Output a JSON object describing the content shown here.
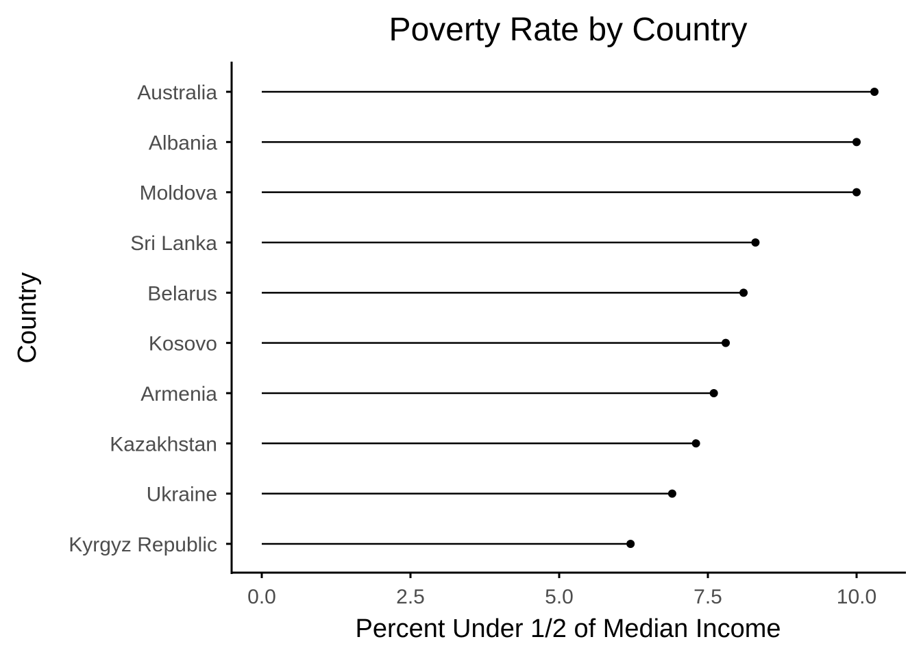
{
  "chart_data": {
    "type": "lollipop",
    "title": "Poverty Rate by Country",
    "xlabel": "Percent Under 1/2 of Median Income",
    "ylabel": "Country",
    "xlim": [
      -0.5,
      10.8
    ],
    "x_ticks": [
      {
        "value": 0,
        "label": "0.0"
      },
      {
        "value": 2.5,
        "label": "2.5"
      },
      {
        "value": 5,
        "label": "5.0"
      },
      {
        "value": 7.5,
        "label": "7.5"
      },
      {
        "value": 10,
        "label": "10.0"
      }
    ],
    "grid": false,
    "categories": [
      "Australia",
      "Albania",
      "Moldova",
      "Sri Lanka",
      "Belarus",
      "Kosovo",
      "Armenia",
      "Kazakhstan",
      "Ukraine",
      "Kyrgyz Republic"
    ],
    "values": [
      10.3,
      10.0,
      10.0,
      8.3,
      8.1,
      7.8,
      7.6,
      7.3,
      6.9,
      6.2
    ],
    "colors": {
      "mark": "#000000",
      "tick_text": "#4d4d4d",
      "text": "#000000"
    }
  }
}
